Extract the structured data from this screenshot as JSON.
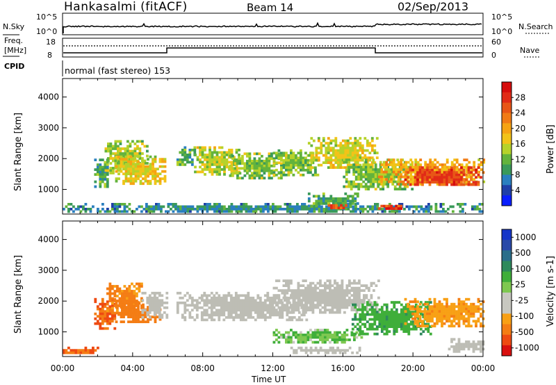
{
  "header": {
    "station": "Hankasalmi (fitACF)",
    "beam": "Beam 14",
    "date": "02/Sep/2013"
  },
  "strip": {
    "nsky_label": "N.Sky",
    "nsky_ticks": [
      "10^5",
      "10^0"
    ],
    "nsearch_label": "N.Search",
    "freq_label_line1": "Freq.",
    "freq_label_line2": "[MHz]",
    "freq_ticks": [
      "18",
      "8"
    ],
    "nave_ticks": [
      "60",
      "0"
    ],
    "nave_label": "Nave",
    "cpid_label": "CPID",
    "cpid_text": "normal (fast stereo) 153"
  },
  "colors": {
    "power_scale": [
      "#0a1eff",
      "#1f3fa8",
      "#2a7fbf",
      "#3a9a5a",
      "#63b33c",
      "#b6d22a",
      "#f2c318",
      "#f6a313",
      "#f17b16",
      "#e85617",
      "#e12b17",
      "#d60d0d"
    ],
    "velocity_scale": [
      "#d9100f",
      "#ee4a12",
      "#f47d14",
      "#f8a015",
      "#c8c8c0",
      "#c8c8c0",
      "#7ec850",
      "#3fae3a",
      "#2e8a5c",
      "#2a6e8a",
      "#2a4aa8",
      "#1535c8"
    ],
    "ground_scatter": "#bdbdb5"
  },
  "chart_data": [
    {
      "type": "heatmap",
      "name": "power",
      "xlabel": "Time UT",
      "ylabel": "Slant Range [km]",
      "xlim": [
        0,
        24
      ],
      "ylim": [
        200,
        4600
      ],
      "yticks": [
        "1000",
        "2000",
        "3000",
        "4000"
      ],
      "colorbar": {
        "label": "Power [dB]",
        "ticks": [
          "4",
          "8",
          "12",
          "16",
          "20",
          "24",
          "28"
        ],
        "range": [
          0,
          30
        ]
      },
      "regions": [
        {
          "t0": 0.0,
          "t1": 24.0,
          "r0": 280,
          "r1": 560,
          "value": 8
        },
        {
          "t0": 1.8,
          "t1": 2.6,
          "r0": 1100,
          "r1": 2000,
          "value": 10
        },
        {
          "t0": 2.4,
          "t1": 4.8,
          "r0": 1500,
          "r1": 2600,
          "value": 13
        },
        {
          "t0": 3.0,
          "t1": 5.8,
          "r0": 1200,
          "r1": 2100,
          "value": 16
        },
        {
          "t0": 6.5,
          "t1": 7.5,
          "r0": 1800,
          "r1": 2400,
          "value": 10
        },
        {
          "t0": 7.5,
          "t1": 10.0,
          "r0": 1500,
          "r1": 2400,
          "value": 14
        },
        {
          "t0": 9.5,
          "t1": 12.5,
          "r0": 1400,
          "r1": 2200,
          "value": 12
        },
        {
          "t0": 12.0,
          "t1": 14.5,
          "r0": 1500,
          "r1": 2300,
          "value": 12
        },
        {
          "t0": 14.0,
          "t1": 18.0,
          "r0": 1700,
          "r1": 2700,
          "value": 15
        },
        {
          "t0": 14.0,
          "t1": 17.0,
          "r0": 500,
          "r1": 900,
          "value": 10
        },
        {
          "t0": 15.0,
          "t1": 16.2,
          "r0": 380,
          "r1": 520,
          "value": 24
        },
        {
          "t0": 16.0,
          "t1": 20.0,
          "r0": 1000,
          "r1": 2000,
          "value": 12
        },
        {
          "t0": 18.0,
          "t1": 19.5,
          "r0": 350,
          "r1": 500,
          "value": 26
        },
        {
          "t0": 18.0,
          "t1": 24.0,
          "r0": 1200,
          "r1": 2000,
          "value": 18
        },
        {
          "t0": 19.5,
          "t1": 24.0,
          "r0": 1150,
          "r1": 1750,
          "value": 25
        }
      ]
    },
    {
      "type": "heatmap",
      "name": "velocity",
      "xlabel": "Time UT",
      "ylabel": "Slant Range [km]",
      "xlim": [
        0,
        24
      ],
      "ylim": [
        200,
        4600
      ],
      "yticks": [
        "1000",
        "2000",
        "3000",
        "4000"
      ],
      "xticks": [
        "00:00",
        "04:00",
        "08:00",
        "12:00",
        "16:00",
        "20:00",
        "00:00"
      ],
      "colorbar": {
        "label": "Velocity [m s-1]",
        "ticks": [
          "1000",
          "500",
          "100",
          "25",
          "-25",
          "-100",
          "-500",
          "-1000"
        ]
      },
      "regions": [
        {
          "t0": 0.0,
          "t1": 2.0,
          "r0": 300,
          "r1": 520,
          "value": -500
        },
        {
          "t0": 1.8,
          "t1": 3.0,
          "r0": 1100,
          "r1": 2100,
          "value": -500
        },
        {
          "t0": 2.5,
          "t1": 4.5,
          "r0": 1600,
          "r1": 2600,
          "value": -300
        },
        {
          "t0": 3.0,
          "t1": 5.5,
          "r0": 1300,
          "r1": 2000,
          "value": -400
        },
        {
          "t0": 4.5,
          "t1": 6.0,
          "r0": 1500,
          "r1": 2300,
          "value": 0
        },
        {
          "t0": 6.5,
          "t1": 14.0,
          "r0": 1400,
          "r1": 2300,
          "value": 0
        },
        {
          "t0": 12.0,
          "t1": 18.0,
          "r0": 1600,
          "r1": 2700,
          "value": 0
        },
        {
          "t0": 12.0,
          "t1": 17.0,
          "r0": 700,
          "r1": 1100,
          "value": 100
        },
        {
          "t0": 13.0,
          "t1": 17.0,
          "r0": 350,
          "r1": 520,
          "value": 0
        },
        {
          "t0": 16.5,
          "t1": 21.0,
          "r0": 900,
          "r1": 2000,
          "value": 200
        },
        {
          "t0": 19.5,
          "t1": 24.0,
          "r0": 1200,
          "r1": 2100,
          "value": -200
        },
        {
          "t0": 22.0,
          "t1": 24.0,
          "r0": 400,
          "r1": 800,
          "value": 0
        }
      ]
    }
  ]
}
